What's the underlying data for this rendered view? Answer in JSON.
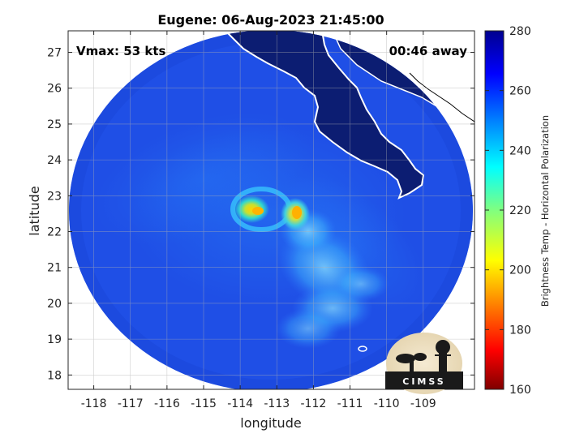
{
  "title": "Eugene: 06-Aug-2023 21:45:00",
  "annotations": {
    "vmax": "Vmax: 53 kts",
    "away": "00:46 away"
  },
  "axes": {
    "xlabel": "longitude",
    "ylabel": "latitude",
    "x_ticks": [
      "-118",
      "-117",
      "-116",
      "-115",
      "-114",
      "-113",
      "-112",
      "-111",
      "-110",
      "-109"
    ],
    "y_ticks": [
      "27",
      "26",
      "25",
      "24",
      "23",
      "22",
      "21",
      "20",
      "19",
      "18"
    ],
    "xlim": [
      -118.7,
      -107.6
    ],
    "ylim": [
      17.6,
      27.6
    ]
  },
  "colorbar": {
    "label": "Brightness Temp - Horizontal Polarization",
    "ticks": [
      "280",
      "260",
      "240",
      "220",
      "200",
      "180",
      "160"
    ],
    "range": [
      160,
      280
    ],
    "colormap": "jet"
  },
  "storm": {
    "name": "Eugene",
    "center_lon": -113.6,
    "center_lat": 22.6,
    "min_brightness_temp_approx": 205
  },
  "logo": {
    "text": "CIMSS"
  },
  "colors": {
    "background_field": "#1f4fe6",
    "land": "#0c1d72",
    "coast": "#ffffff"
  }
}
